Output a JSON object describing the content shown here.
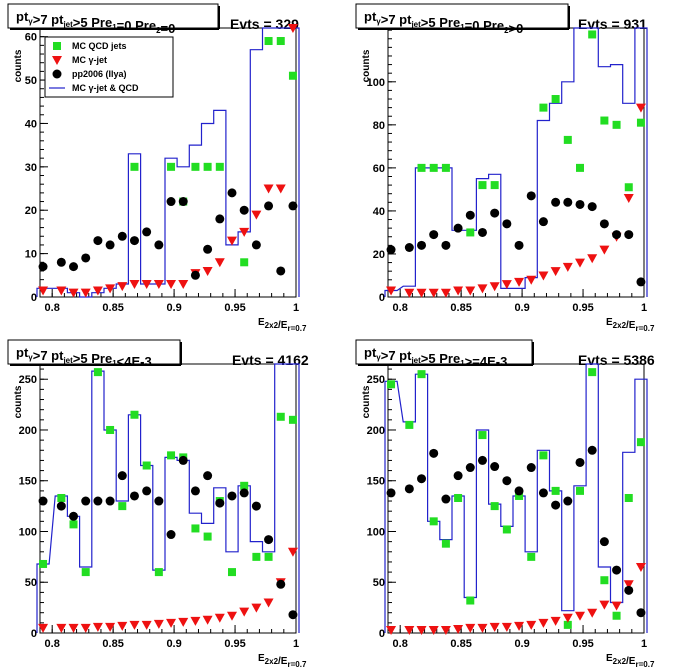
{
  "colors": {
    "qcd": "#22dd22",
    "gamma": "#ee1111",
    "data": "#000000",
    "mc_sum": "#2222cc"
  },
  "chart_data": [
    {
      "type": "scatter",
      "title": "pt_{γ}>7  pt_{jet}>5 Pre_{1}=0 Pre_{2}=0",
      "evts": "Evts = 329",
      "ylabel": "counts",
      "xlabel": "E_{2x2}/E_{r=0.7}",
      "xlim": [
        0.79,
        1.0
      ],
      "ylim": [
        0,
        62
      ],
      "xticks": [
        "0.8",
        "0.85",
        "0.9",
        "0.95",
        "1"
      ],
      "yticks": [
        "0",
        "10",
        "20",
        "30",
        "40",
        "50",
        "60"
      ],
      "legend": [
        "MC QCD jets",
        "MC γ-jet",
        "pp2006 (Ilya)",
        "MC γ-jet & QCD"
      ],
      "x": [
        0.7925,
        0.8075,
        0.8175,
        0.8275,
        0.8375,
        0.8475,
        0.8575,
        0.8675,
        0.8775,
        0.8875,
        0.8975,
        0.9075,
        0.9175,
        0.9275,
        0.9375,
        0.9475,
        0.9575,
        0.9675,
        0.9775,
        0.9875,
        0.9975
      ],
      "series": [
        {
          "name": "MC QCD jets",
          "values": [
            0,
            0,
            0,
            0,
            0,
            0,
            0,
            30,
            0,
            0,
            30,
            22,
            30,
            30,
            30,
            0,
            8,
            0,
            59,
            59,
            51
          ]
        },
        {
          "name": "MC γ-jet",
          "values": [
            1.5,
            1.5,
            1,
            1,
            1.5,
            2,
            2.5,
            3,
            3,
            3,
            3,
            3,
            5.5,
            6,
            8,
            13,
            15,
            19,
            25,
            25,
            62
          ]
        },
        {
          "name": "pp2006 (Ilya)",
          "values": [
            7,
            8,
            7,
            9,
            13,
            12,
            14,
            13,
            15,
            12,
            22,
            22,
            5,
            11,
            18,
            24,
            20,
            12,
            21,
            6,
            21
          ]
        },
        {
          "name": "MC γ-jet & QCD",
          "values": [
            2,
            2,
            1,
            0,
            1,
            2,
            3,
            33,
            3,
            3,
            32,
            30,
            35,
            40,
            43,
            12,
            15,
            57,
            62,
            62,
            62
          ]
        }
      ]
    },
    {
      "type": "scatter",
      "title": "pt_{γ}>7  pt_{jet}>5 Pre_{1}=0 Pre_{2}>0",
      "evts": "Evts = 931",
      "ylabel": "counts",
      "xlabel": "E_{2x2}/E_{r=0.7}",
      "xlim": [
        0.79,
        1.0
      ],
      "ylim": [
        0,
        125
      ],
      "xticks": [
        "0.8",
        "0.85",
        "0.9",
        "0.95",
        "1"
      ],
      "yticks": [
        "0",
        "20",
        "40",
        "60",
        "80",
        "100"
      ],
      "x": [
        0.7925,
        0.8075,
        0.8175,
        0.8275,
        0.8375,
        0.8475,
        0.8575,
        0.8675,
        0.8775,
        0.8875,
        0.8975,
        0.9075,
        0.9175,
        0.9275,
        0.9375,
        0.9475,
        0.9575,
        0.9675,
        0.9775,
        0.9875,
        0.9975
      ],
      "series": [
        {
          "name": "MC QCD jets",
          "values": [
            0,
            0,
            60,
            60,
            60,
            0,
            30,
            52,
            52,
            0,
            0,
            0,
            88,
            92,
            73,
            60,
            122,
            82,
            80,
            51,
            81
          ]
        },
        {
          "name": "MC γ-jet",
          "values": [
            3,
            2,
            2,
            2,
            2,
            3,
            3,
            4,
            5,
            6,
            7,
            8,
            10,
            12,
            14,
            16,
            18,
            22,
            28,
            46,
            88
          ]
        },
        {
          "name": "pp2006 (Ilya)",
          "values": [
            22,
            23,
            24,
            29,
            24,
            32,
            38,
            30,
            39,
            34,
            24,
            47,
            35,
            44,
            44,
            43,
            42,
            34,
            29,
            29,
            7
          ]
        },
        {
          "name": "MC γ-jet & QCD",
          "values": [
            3,
            5,
            60,
            60,
            60,
            31,
            31,
            55,
            57,
            4,
            4,
            9,
            82,
            90,
            100,
            125,
            125,
            107,
            108,
            90,
            125
          ]
        }
      ]
    },
    {
      "type": "scatter",
      "title": "pt_{γ}>7  pt_{jet}>5 Pre_{1}<4E-3",
      "evts": "Evts = 4162",
      "ylabel": "counts",
      "xlabel": "E_{2x2}/E_{r=0.7}",
      "xlim": [
        0.79,
        1.0
      ],
      "ylim": [
        0,
        265
      ],
      "xticks": [
        "0.8",
        "0.85",
        "0.9",
        "0.95",
        "1"
      ],
      "yticks": [
        "0",
        "50",
        "100",
        "150",
        "200",
        "250"
      ],
      "x": [
        0.7925,
        0.8075,
        0.8175,
        0.8275,
        0.8375,
        0.8475,
        0.8575,
        0.8675,
        0.8775,
        0.8875,
        0.8975,
        0.9075,
        0.9175,
        0.9275,
        0.9375,
        0.9475,
        0.9575,
        0.9675,
        0.9775,
        0.9875,
        0.9975
      ],
      "series": [
        {
          "name": "MC QCD jets",
          "values": [
            68,
            133,
            107,
            60,
            257,
            200,
            125,
            215,
            165,
            60,
            175,
            173,
            103,
            95,
            130,
            60,
            145,
            75,
            75,
            213,
            210
          ]
        },
        {
          "name": "MC γ-jet",
          "values": [
            5,
            5,
            5,
            5,
            6,
            6,
            7,
            8,
            8,
            9,
            10,
            11,
            12,
            13,
            15,
            17,
            21,
            25,
            30,
            50,
            80
          ]
        },
        {
          "name": "pp2006 (Ilya)",
          "values": [
            130,
            125,
            115,
            130,
            130,
            130,
            155,
            135,
            140,
            130,
            97,
            170,
            140,
            155,
            128,
            135,
            138,
            125,
            92,
            48,
            18
          ]
        },
        {
          "name": "MC γ-jet & QCD",
          "values": [
            68,
            135,
            115,
            65,
            258,
            200,
            130,
            215,
            165,
            62,
            173,
            170,
            118,
            108,
            143,
            80,
            145,
            90,
            80,
            265,
            265
          ]
        }
      ]
    },
    {
      "type": "scatter",
      "title": "pt_{γ}>7  pt_{jet}>5 Pre_{1}>=4E-3",
      "evts": "Evts = 5386",
      "ylabel": "counts",
      "xlabel": "E_{2x2}/E_{r=0.7}",
      "xlim": [
        0.79,
        1.0
      ],
      "ylim": [
        0,
        265
      ],
      "xticks": [
        "0.8",
        "0.85",
        "0.9",
        "0.95",
        "1"
      ],
      "yticks": [
        "0",
        "50",
        "100",
        "150",
        "200",
        "250"
      ],
      "x": [
        0.7925,
        0.8075,
        0.8175,
        0.8275,
        0.8375,
        0.8475,
        0.8575,
        0.8675,
        0.8775,
        0.8875,
        0.8975,
        0.9075,
        0.9175,
        0.9275,
        0.9375,
        0.9475,
        0.9575,
        0.9675,
        0.9775,
        0.9875,
        0.9975
      ],
      "series": [
        {
          "name": "MC QCD jets",
          "values": [
            245,
            205,
            255,
            110,
            88,
            133,
            32,
            195,
            125,
            102,
            135,
            75,
            175,
            140,
            8,
            140,
            257,
            52,
            17,
            133,
            188
          ]
        },
        {
          "name": "MC γ-jet",
          "values": [
            3,
            3,
            3,
            3,
            3,
            4,
            5,
            5,
            6,
            6,
            7,
            8,
            10,
            12,
            15,
            17,
            20,
            28,
            27,
            48,
            65
          ]
        },
        {
          "name": "pp2006 (Ilya)",
          "values": [
            138,
            142,
            152,
            177,
            132,
            155,
            163,
            170,
            164,
            150,
            140,
            163,
            138,
            126,
            130,
            168,
            180,
            90,
            62,
            42,
            20
          ]
        },
        {
          "name": "MC γ-jet & QCD",
          "values": [
            248,
            208,
            255,
            110,
            92,
            135,
            35,
            200,
            127,
            105,
            135,
            80,
            180,
            140,
            22,
            145,
            265,
            65,
            30,
            178,
            250
          ]
        }
      ]
    }
  ]
}
